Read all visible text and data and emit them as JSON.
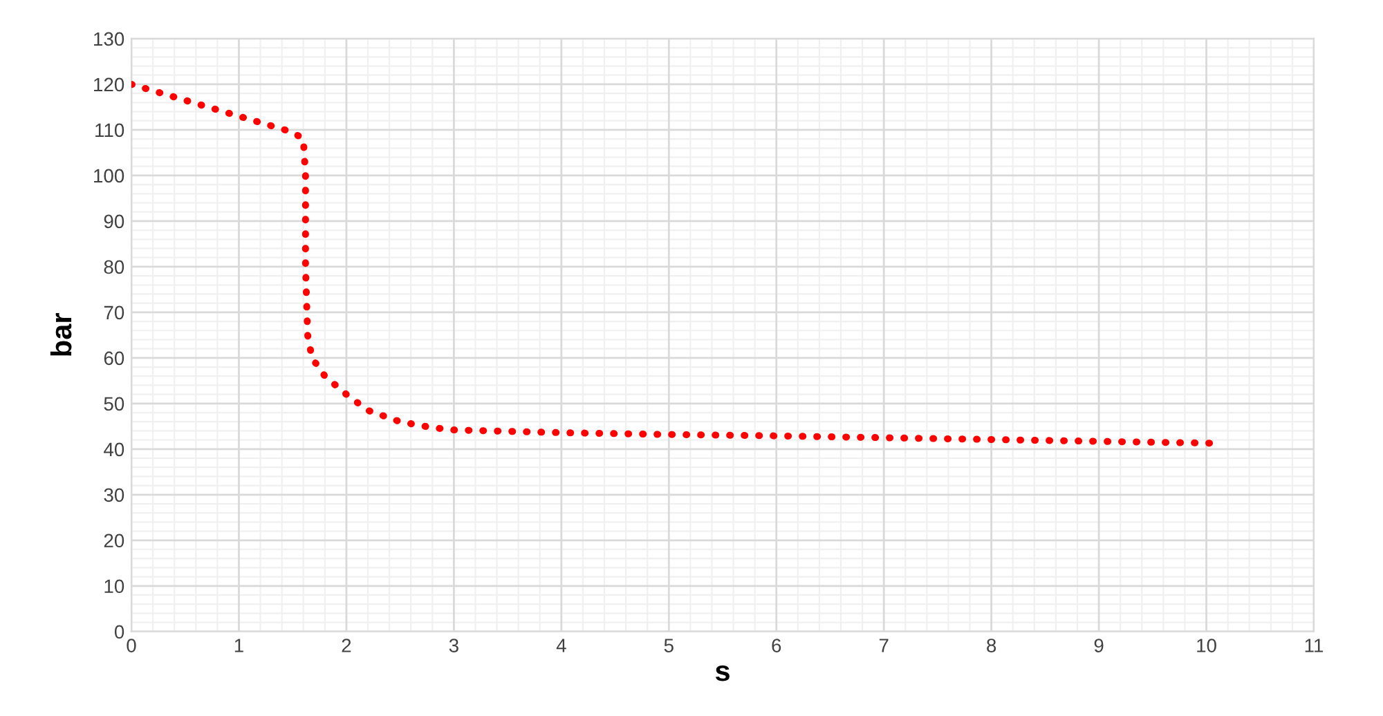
{
  "chart_data": {
    "type": "line",
    "xlabel": "s",
    "ylabel": "bar",
    "x": [
      0,
      0.5,
      1,
      1.5,
      1.6,
      1.62,
      1.62,
      1.64,
      1.68,
      1.8,
      2,
      2.2,
      2.5,
      2.8,
      3,
      4,
      5,
      6,
      7,
      8,
      9,
      10.05
    ],
    "series": [
      {
        "color": "#ff0000",
        "values": [
          120,
          116.5,
          113,
          109.5,
          108,
          100,
          80,
          65,
          60,
          56,
          52,
          48.5,
          46,
          44.7,
          44.2,
          43.6,
          43.2,
          42.9,
          42.5,
          42.1,
          41.7,
          41.3
        ]
      }
    ],
    "xlim": [
      0,
      11
    ],
    "xticks": [
      0,
      1,
      2,
      3,
      4,
      5,
      6,
      7,
      8,
      9,
      10,
      11
    ],
    "ylim": [
      0,
      130
    ],
    "yticks": [
      0,
      10,
      20,
      30,
      40,
      50,
      60,
      70,
      80,
      90,
      100,
      110,
      120,
      130
    ],
    "grid": true,
    "line_style": "dotted",
    "marker": "none"
  }
}
